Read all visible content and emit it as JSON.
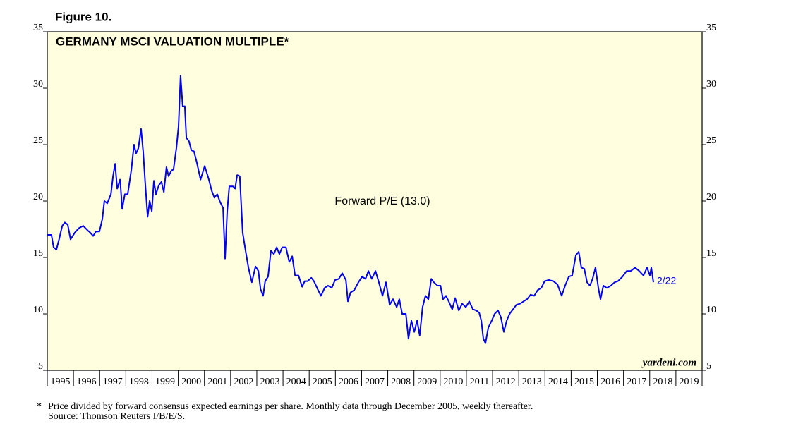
{
  "chart_data": {
    "type": "line",
    "figure_label": "Figure 10.",
    "title": "GERMANY MSCI VALUATION MULTIPLE*",
    "annotations": {
      "last_date": "2/22",
      "source_site": "yardeni.com"
    },
    "footnote": {
      "marker": "*",
      "text": "Price divided by forward consensus expected earnings per share. Monthly data through December 2005, weekly thereafter.",
      "source": "Source: Thomson Reuters I/B/E/S."
    },
    "background": "#ffffe0",
    "xlim": [
      1995,
      2020
    ],
    "xticks": [
      1995,
      1996,
      1997,
      1998,
      1999,
      2000,
      2001,
      2002,
      2003,
      2004,
      2005,
      2006,
      2007,
      2008,
      2009,
      2010,
      2011,
      2012,
      2013,
      2014,
      2015,
      2016,
      2017,
      2018,
      2019
    ],
    "ylim": [
      5,
      35
    ],
    "yticks": [
      5,
      10,
      15,
      20,
      25,
      30,
      35
    ],
    "x": [
      1995.0,
      1995.16,
      1995.24,
      1995.35,
      1995.46,
      1995.57,
      1995.67,
      1995.78,
      1995.89,
      1996.05,
      1996.21,
      1996.37,
      1996.54,
      1996.64,
      1996.75,
      1996.86,
      1996.99,
      1997.1,
      1997.18,
      1997.29,
      1997.43,
      1997.51,
      1997.59,
      1997.67,
      1997.78,
      1997.86,
      1997.96,
      1998.07,
      1998.21,
      1998.31,
      1998.39,
      1998.48,
      1998.58,
      1998.66,
      1998.74,
      1998.83,
      1998.91,
      1998.99,
      1999.07,
      1999.15,
      1999.26,
      1999.36,
      1999.45,
      1999.55,
      1999.63,
      1999.74,
      1999.82,
      1999.93,
      2000.01,
      2000.09,
      2000.17,
      2000.25,
      2000.31,
      2000.41,
      2000.5,
      2000.6,
      2000.71,
      2000.85,
      2001.01,
      2001.17,
      2001.28,
      2001.38,
      2001.49,
      2001.6,
      2001.71,
      2001.79,
      2001.87,
      2001.95,
      2002.09,
      2002.17,
      2002.25,
      2002.35,
      2002.46,
      2002.57,
      2002.68,
      2002.81,
      2002.95,
      2003.06,
      2003.14,
      2003.24,
      2003.32,
      2003.43,
      2003.54,
      2003.65,
      2003.76,
      2003.86,
      2003.97,
      2004.11,
      2004.24,
      2004.35,
      2004.46,
      2004.59,
      2004.73,
      2004.83,
      2004.94,
      2005.08,
      2005.18,
      2005.32,
      2005.45,
      2005.59,
      2005.72,
      2005.86,
      2005.99,
      2006.13,
      2006.26,
      2006.4,
      2006.48,
      2006.58,
      2006.72,
      2006.88,
      2007.02,
      2007.15,
      2007.26,
      2007.39,
      2007.53,
      2007.66,
      2007.8,
      2007.93,
      2008.07,
      2008.2,
      2008.34,
      2008.44,
      2008.55,
      2008.69,
      2008.79,
      2008.9,
      2009.01,
      2009.12,
      2009.22,
      2009.33,
      2009.44,
      2009.55,
      2009.66,
      2009.76,
      2009.9,
      2010.01,
      2010.11,
      2010.22,
      2010.33,
      2010.46,
      2010.57,
      2010.71,
      2010.84,
      2010.98,
      2011.11,
      2011.25,
      2011.38,
      2011.49,
      2011.57,
      2011.65,
      2011.73,
      2011.84,
      2011.97,
      2012.08,
      2012.21,
      2012.32,
      2012.43,
      2012.54,
      2012.65,
      2012.78,
      2012.91,
      2013.05,
      2013.18,
      2013.32,
      2013.45,
      2013.59,
      2013.72,
      2013.86,
      2013.99,
      2014.15,
      2014.32,
      2014.48,
      2014.64,
      2014.77,
      2014.91,
      2015.04,
      2015.18,
      2015.29,
      2015.39,
      2015.5,
      2015.61,
      2015.72,
      2015.82,
      2015.93,
      2016.04,
      2016.12,
      2016.23,
      2016.36,
      2016.52,
      2016.66,
      2016.79,
      2016.96,
      2017.12,
      2017.28,
      2017.44,
      2017.6,
      2017.76,
      2017.9,
      2018.01,
      2018.06,
      2018.14
    ],
    "series": [
      {
        "name": "Forward P/E (13.0)",
        "color": "#0000ee",
        "values": [
          17.0,
          17.0,
          15.9,
          15.7,
          16.7,
          17.8,
          18.1,
          17.9,
          16.6,
          17.2,
          17.6,
          17.8,
          17.4,
          17.2,
          16.9,
          17.3,
          17.3,
          18.4,
          20.0,
          19.8,
          20.6,
          22.2,
          23.3,
          21.1,
          21.9,
          19.3,
          20.6,
          20.6,
          22.8,
          25.0,
          24.2,
          24.7,
          26.4,
          24.4,
          21.6,
          18.6,
          20.0,
          19.1,
          21.8,
          20.6,
          21.4,
          21.7,
          20.8,
          23.0,
          22.2,
          22.7,
          22.8,
          24.7,
          26.6,
          31.1,
          28.4,
          28.4,
          25.6,
          25.3,
          24.5,
          24.4,
          23.4,
          21.9,
          23.1,
          21.9,
          20.9,
          20.3,
          20.6,
          19.9,
          19.4,
          14.9,
          19.1,
          21.3,
          21.3,
          21.1,
          22.3,
          22.2,
          17.2,
          15.6,
          14.1,
          12.8,
          14.2,
          13.8,
          12.2,
          11.6,
          12.9,
          13.3,
          15.6,
          15.3,
          15.9,
          15.3,
          15.9,
          15.9,
          14.6,
          15.1,
          13.4,
          13.4,
          12.4,
          12.9,
          12.9,
          13.2,
          12.9,
          12.2,
          11.6,
          12.3,
          12.5,
          12.3,
          13.0,
          13.1,
          13.6,
          13.0,
          11.1,
          11.9,
          12.1,
          12.8,
          13.3,
          13.1,
          13.8,
          13.1,
          13.8,
          12.8,
          11.6,
          12.8,
          10.8,
          11.3,
          10.6,
          11.3,
          10.0,
          10.0,
          7.8,
          9.4,
          8.4,
          9.4,
          8.1,
          10.6,
          11.6,
          11.3,
          13.1,
          12.8,
          12.5,
          12.5,
          11.3,
          11.6,
          11.1,
          10.4,
          11.4,
          10.3,
          10.9,
          10.6,
          11.1,
          10.4,
          10.3,
          10.1,
          9.4,
          7.8,
          7.4,
          8.8,
          9.4,
          10.0,
          10.3,
          9.7,
          8.4,
          9.4,
          10.0,
          10.4,
          10.8,
          10.9,
          11.1,
          11.3,
          11.7,
          11.6,
          12.1,
          12.3,
          12.9,
          13.0,
          12.9,
          12.6,
          11.6,
          12.5,
          13.3,
          13.4,
          15.2,
          15.5,
          14.1,
          14.0,
          12.8,
          12.5,
          13.1,
          14.1,
          12.3,
          11.3,
          12.5,
          12.3,
          12.5,
          12.8,
          12.9,
          13.3,
          13.8,
          13.8,
          14.1,
          13.8,
          13.4,
          14.1,
          13.4,
          14.1,
          12.8
        ]
      }
    ]
  }
}
